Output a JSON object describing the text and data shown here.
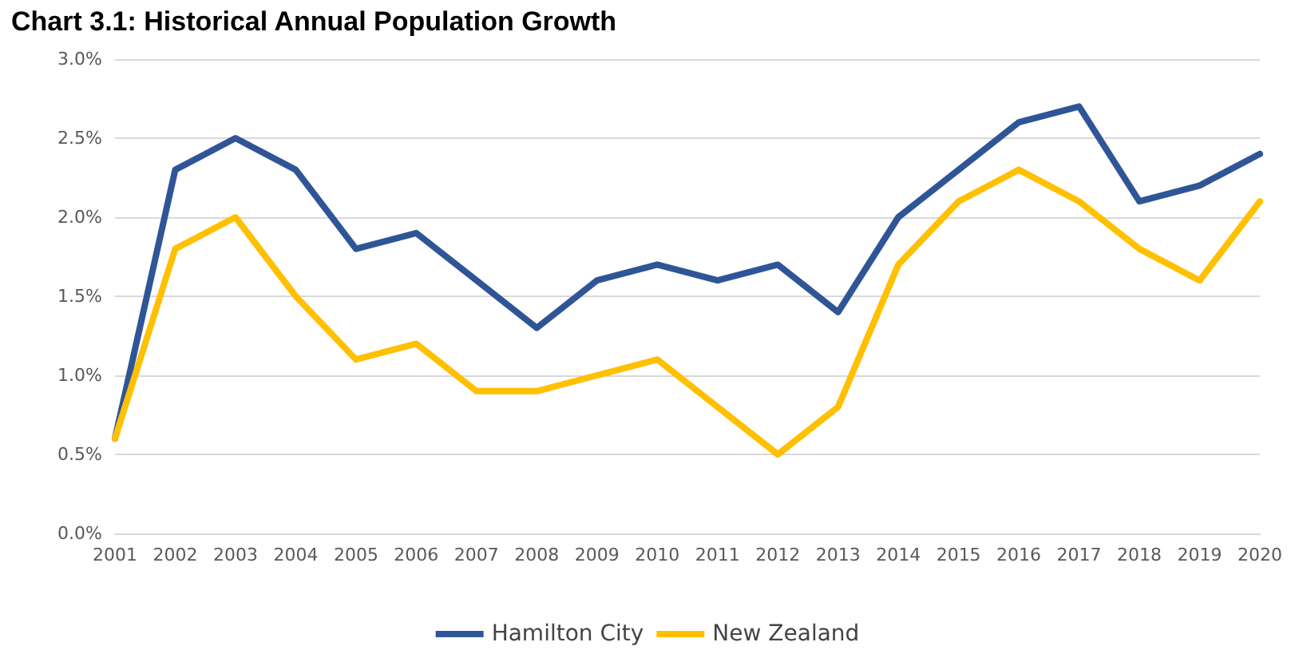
{
  "chart_data": {
    "type": "line",
    "title": "Chart 3.1: Historical Annual Population Growth",
    "categories": [
      "2001",
      "2002",
      "2003",
      "2004",
      "2005",
      "2006",
      "2007",
      "2008",
      "2009",
      "2010",
      "2011",
      "2012",
      "2013",
      "2014",
      "2015",
      "2016",
      "2017",
      "2018",
      "2019",
      "2020"
    ],
    "series": [
      {
        "name": "Hamilton City",
        "color": "#2f5597",
        "values": [
          0.6,
          2.3,
          2.5,
          2.3,
          1.8,
          1.9,
          1.6,
          1.3,
          1.6,
          1.7,
          1.6,
          1.7,
          1.4,
          2.0,
          2.3,
          2.6,
          2.7,
          2.1,
          2.2,
          2.4
        ]
      },
      {
        "name": "New Zealand",
        "color": "#ffc000",
        "values": [
          0.6,
          1.8,
          2.0,
          1.5,
          1.1,
          1.2,
          0.9,
          0.9,
          1.0,
          1.1,
          0.8,
          0.5,
          0.8,
          1.7,
          2.1,
          2.3,
          2.1,
          1.8,
          1.6,
          2.1
        ]
      }
    ],
    "ylim": [
      0,
      3
    ],
    "yticks": [
      {
        "value": 0,
        "label": "0.0%"
      },
      {
        "value": 0.5,
        "label": "0.5%"
      },
      {
        "value": 1,
        "label": "1.0%"
      },
      {
        "value": 1.5,
        "label": "1.5%"
      },
      {
        "value": 2,
        "label": "2.0%"
      },
      {
        "value": 2.5,
        "label": "2.5%"
      },
      {
        "value": 3,
        "label": "3.0%"
      }
    ],
    "grid": "y",
    "legend": "bottom",
    "marker": "none",
    "line_style": "solid"
  }
}
